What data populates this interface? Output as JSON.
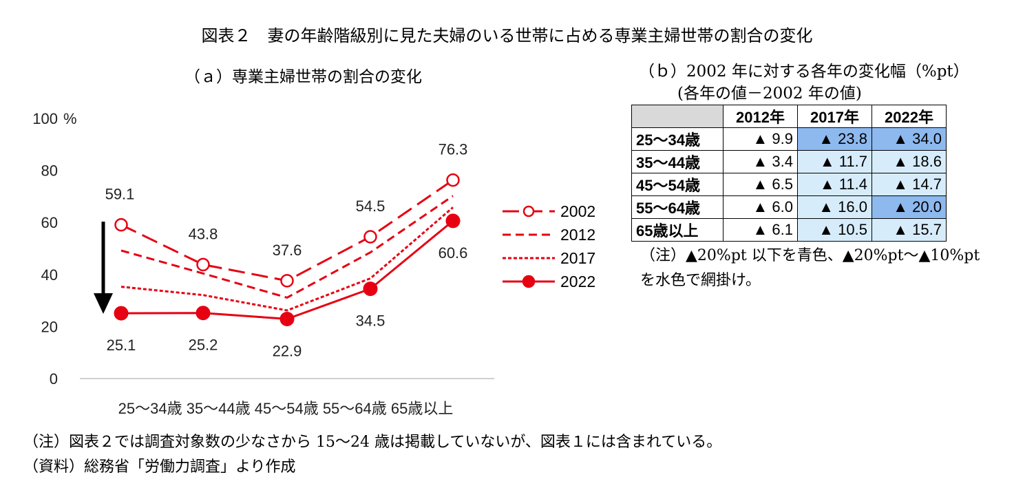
{
  "main_title": "図表２　妻の年齢階級別に見た夫婦のいる世帯に占める専業主婦世帯の割合の変化",
  "panel_a_title": "（ａ）専業主婦世帯の割合の変化",
  "panel_b_title": "（ｂ）2002 年に対する各年の変化幅（%pt）",
  "panel_b_subtitle": "(各年の値－2002 年の値)",
  "chart_data": {
    "type": "line",
    "ylabel": "%",
    "ylim": [
      0,
      100
    ],
    "y_ticks": [
      "0",
      "20",
      "40",
      "60",
      "80",
      "100"
    ],
    "categories": [
      "25～34歳",
      "35～44歳",
      "45～54歳",
      "55～64歳",
      "65歳以上"
    ],
    "series": [
      {
        "name": "2002",
        "values": [
          59.1,
          43.8,
          37.6,
          54.5,
          76.3
        ],
        "style": "long-dash-open-circle",
        "labels": [
          "59.1",
          "43.8",
          "37.6",
          "54.5",
          "76.3"
        ]
      },
      {
        "name": "2012",
        "values": [
          49.2,
          40.4,
          31.1,
          48.5,
          70.2
        ],
        "style": "dash"
      },
      {
        "name": "2017",
        "values": [
          35.3,
          32.1,
          26.2,
          38.5,
          65.8
        ],
        "style": "dot"
      },
      {
        "name": "2022",
        "values": [
          25.1,
          25.2,
          22.9,
          34.5,
          60.6
        ],
        "style": "solid-filled-circle",
        "labels": [
          "25.1",
          "25.2",
          "22.9",
          "34.5",
          "60.6"
        ]
      }
    ],
    "line_color": "#e60012",
    "annotation": "black down arrow at 25～34歳 indicating decrease"
  },
  "table": {
    "headers": [
      "",
      "2012年",
      "2017年",
      "2022年"
    ],
    "rows": [
      {
        "label": "25～34歳",
        "cells": [
          {
            "v": "▲ 9.9",
            "shade": "none"
          },
          {
            "v": "▲ 23.8",
            "shade": "dark"
          },
          {
            "v": "▲ 34.0",
            "shade": "dark"
          }
        ]
      },
      {
        "label": "35～44歳",
        "cells": [
          {
            "v": "▲ 3.4",
            "shade": "none"
          },
          {
            "v": "▲ 11.7",
            "shade": "light"
          },
          {
            "v": "▲ 18.6",
            "shade": "light"
          }
        ]
      },
      {
        "label": "45～54歳",
        "cells": [
          {
            "v": "▲ 6.5",
            "shade": "none"
          },
          {
            "v": "▲ 11.4",
            "shade": "light"
          },
          {
            "v": "▲ 14.7",
            "shade": "light"
          }
        ]
      },
      {
        "label": "55～64歳",
        "cells": [
          {
            "v": "▲ 6.0",
            "shade": "none"
          },
          {
            "v": "▲ 16.0",
            "shade": "light"
          },
          {
            "v": "▲ 20.0",
            "shade": "dark"
          }
        ]
      },
      {
        "label": "65歳以上",
        "cells": [
          {
            "v": "▲ 6.1",
            "shade": "none"
          },
          {
            "v": "▲ 10.5",
            "shade": "light"
          },
          {
            "v": "▲ 15.7",
            "shade": "light"
          }
        ]
      }
    ],
    "colors": {
      "dark": "#8db9ef",
      "light": "#d7ecfb",
      "header_corner": "#d9d9d9"
    }
  },
  "table_note": "（注）▲20%pt 以下を青色、▲20%pt～▲10%pt を水色で網掛け。",
  "footnote": "（注）図表２では調査対象数の少なさから 15～24 歳は掲載していないが、図表１には含まれている。",
  "source": "（資料）総務省「労働力調査」より作成"
}
